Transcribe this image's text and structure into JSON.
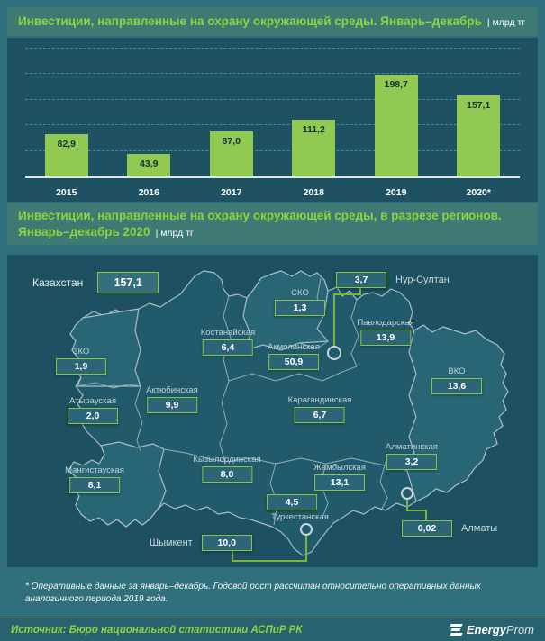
{
  "header1": {
    "title": "Инвестиции, направленные на охрану окружающей среды. Январь–декабрь",
    "unit": "| млрд тг"
  },
  "chart_data": {
    "type": "bar",
    "title": "Инвестиции, направленные на охрану окружающей среды. Январь–декабрь, млрд тг",
    "categories": [
      "2015",
      "2016",
      "2017",
      "2018",
      "2019",
      "2020*"
    ],
    "values": [
      82.9,
      43.9,
      87.0,
      111.2,
      198.7,
      157.1
    ],
    "labels": [
      "82,9",
      "43,9",
      "87,0",
      "111,2",
      "198,7",
      "157,1"
    ],
    "ylim": [
      0,
      250
    ],
    "gridlines": [
      50,
      100,
      150,
      200,
      250
    ],
    "bar_color": "#92c952",
    "legend_position": "none",
    "grid": "dashed-horizontal"
  },
  "header2": {
    "title_line1": "Инвестиции, направленные на охрану окружающей среды, в разрезе регионов.",
    "title_line2": "Январь–декабрь 2020",
    "unit": "| млрд тг"
  },
  "map": {
    "country": {
      "name": "Казахстан",
      "value": "157,1"
    },
    "regions": [
      {
        "name": "СКО",
        "value": "1,3"
      },
      {
        "name": "Павлодарская",
        "value": "13,9"
      },
      {
        "name": "Костанайская",
        "value": "6,4"
      },
      {
        "name": "Акмолинская",
        "value": "50,9"
      },
      {
        "name": "ВКО",
        "value": "13,6"
      },
      {
        "name": "ЗКО",
        "value": "1,9"
      },
      {
        "name": "Актюбинская",
        "value": "9,9"
      },
      {
        "name": "Карагандинская",
        "value": "6,7"
      },
      {
        "name": "Атырауская",
        "value": "2,0"
      },
      {
        "name": "Алматинская",
        "value": "3,2"
      },
      {
        "name": "Кызылординская",
        "value": "8,0"
      },
      {
        "name": "Жамбылская",
        "value": "13,1"
      },
      {
        "name": "Мангистауская",
        "value": "8,1"
      },
      {
        "name": "Туркестанская",
        "value": "4,5"
      }
    ],
    "cities": [
      {
        "name": "Нур-Султан",
        "value": "3,7"
      },
      {
        "name": "Алматы",
        "value": "0,02"
      },
      {
        "name": "Шымкент",
        "value": "10,0"
      }
    ]
  },
  "footnote": "* Оперативные данные за январь–декабрь. Годовой рост рассчитан относительно оперативных данных аналогичного периода 2019 года.",
  "source": "Источник: Бюро национальной статистики АСПиР РК",
  "logo": {
    "bold": "Energy",
    "light": "Prom"
  },
  "colors": {
    "accent_green": "#8dd23f",
    "bar_green": "#92c952",
    "panel_dark": "#1e5263",
    "background": "#30707c"
  }
}
